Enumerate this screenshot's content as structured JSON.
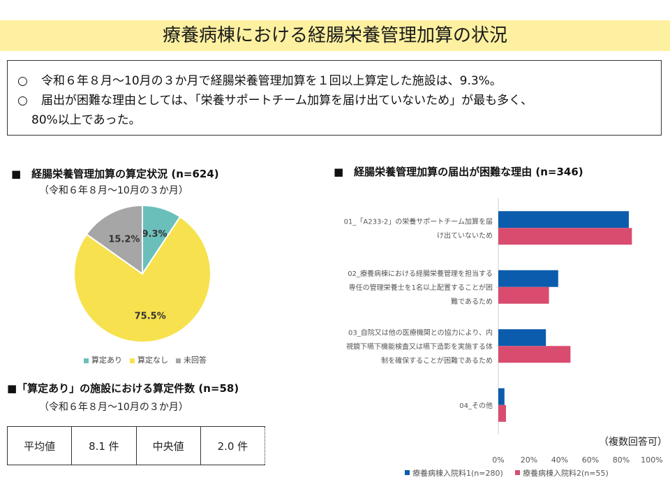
{
  "title": "療養病棟における経腸栄養管理加算の状況",
  "summary": {
    "bullet": "○",
    "line1": "令和６年８月～10月の３か月で経腸栄養管理加算を１回以上算定した施設は、9.3%。",
    "line2": "届出が困難な理由としては、「栄養サポートチーム加算を届け出ていないため」が最も多く、",
    "line3": "80%以上であった。"
  },
  "colors": {
    "teal": "#6bbfbb",
    "yellow": "#f7e14e",
    "gray": "#a6a6a6",
    "blue": "#0b5cad",
    "pink": "#d94c6f",
    "title_band": "#fdf0a0"
  },
  "pie_section": {
    "heading": "■　経腸栄養管理加算の算定状況 (n=624)",
    "period": "（令和６年８月～10月の３か月）"
  },
  "stats_section": {
    "heading": "■「算定あり」の施設における算定件数 (n=58)",
    "period": "（令和６年８月～10月の３か月）",
    "mean_label": "平均値",
    "mean_value": "8.1 件",
    "median_label": "中央値",
    "median_value": "2.0 件"
  },
  "bar_section": {
    "heading": "■　経腸栄養管理加算の届出が困難な理由 (n=346)",
    "note": "（複数回答可）"
  },
  "chart_data": [
    {
      "type": "pie",
      "categories": [
        "算定あり",
        "算定なし",
        "未回答"
      ],
      "values": [
        9.3,
        75.5,
        15.2
      ],
      "labels": [
        "9.3%",
        "75.5%",
        "15.2%"
      ],
      "legend": "bottom"
    },
    {
      "type": "bar",
      "orientation": "horizontal",
      "categories": [
        [
          "01_「A233-2」の栄養サポートチーム加算を届",
          "け出ていないため"
        ],
        [
          "02_療養病棟における経腸栄養管理を担当する",
          "専任の管理栄養士を1名以上配置することが困",
          "難であるため"
        ],
        [
          "03_自院又は他の医療機関との協力により、内",
          "視鏡下嚥下機能検査又は嚥下造影を実施する体",
          "制を確保することが困難であるため"
        ],
        [
          "04_その他"
        ]
      ],
      "series": [
        {
          "name": "療養病棟入院料1(n=280)",
          "values": [
            85,
            39,
            31,
            4
          ]
        },
        {
          "name": "療養病棟入院料2(n=55)",
          "values": [
            87,
            33,
            47,
            5
          ]
        }
      ],
      "xlim": [
        0,
        100
      ],
      "xticks": [
        "0%",
        "20%",
        "40%",
        "60%",
        "80%",
        "100%"
      ],
      "grid": false,
      "legend": "bottom"
    }
  ]
}
